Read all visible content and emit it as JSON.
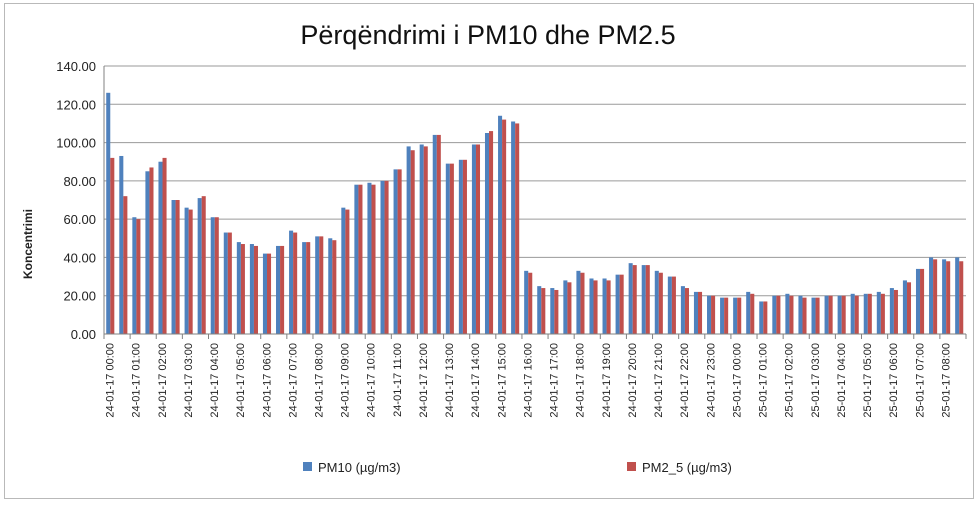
{
  "chart_data": {
    "type": "bar",
    "title": "Përqëndrimi i PM10 dhe PM2.5",
    "xlabel": "",
    "ylabel": "Koncentrimi",
    "ylim": [
      0,
      140
    ],
    "yticks": [
      "0.00",
      "20.00",
      "40.00",
      "60.00",
      "80.00",
      "100.00",
      "120.00",
      "140.00"
    ],
    "grid": true,
    "legend_position": "bottom",
    "categories": [
      "24-01-17 00:00",
      "24-01-17 00:30",
      "24-01-17 01:00",
      "24-01-17 01:30",
      "24-01-17 02:00",
      "24-01-17 02:30",
      "24-01-17 03:00",
      "24-01-17 03:30",
      "24-01-17 04:00",
      "24-01-17 04:30",
      "24-01-17 05:00",
      "24-01-17 05:30",
      "24-01-17 06:00",
      "24-01-17 06:30",
      "24-01-17 07:00",
      "24-01-17 07:30",
      "24-01-17 08:00",
      "24-01-17 08:30",
      "24-01-17 09:00",
      "24-01-17 09:30",
      "24-01-17 10:00",
      "24-01-17 10:30",
      "24-01-17 11:00",
      "24-01-17 11:30",
      "24-01-17 12:00",
      "24-01-17 12:30",
      "24-01-17 13:00",
      "24-01-17 13:30",
      "24-01-17 14:00",
      "24-01-17 14:30",
      "24-01-17 15:00",
      "24-01-17 15:30",
      "24-01-17 16:00",
      "24-01-17 16:30",
      "24-01-17 17:00",
      "24-01-17 17:30",
      "24-01-17 18:00",
      "24-01-17 18:30",
      "24-01-17 19:00",
      "24-01-17 19:30",
      "24-01-17 20:00",
      "24-01-17 20:30",
      "24-01-17 21:00",
      "24-01-17 21:30",
      "24-01-17 22:00",
      "24-01-17 22:30",
      "24-01-17 23:00",
      "24-01-17 23:30",
      "25-01-17 00:00",
      "25-01-17 00:30",
      "25-01-17 01:00",
      "25-01-17 01:30",
      "25-01-17 02:00",
      "25-01-17 02:30",
      "25-01-17 03:00",
      "25-01-17 03:30",
      "25-01-17 04:00",
      "25-01-17 04:30",
      "25-01-17 05:00",
      "25-01-17 05:30",
      "25-01-17 06:00",
      "25-01-17 06:30",
      "25-01-17 07:00",
      "25-01-17 07:30",
      "25-01-17 08:00",
      "25-01-17 08:30"
    ],
    "tick_labels": [
      "24-01-17 00:00",
      "24-01-17 01:00",
      "24-01-17 02:00",
      "24-01-17 03:00",
      "24-01-17 04:00",
      "24-01-17 05:00",
      "24-01-17 06:00",
      "24-01-17 07:00",
      "24-01-17 08:00",
      "24-01-17 09:00",
      "24-01-17 10:00",
      "24-01-17 11:00",
      "24-01-17 12:00",
      "24-01-17 13:00",
      "24-01-17 14:00",
      "24-01-17 15:00",
      "24-01-17 16:00",
      "24-01-17 17:00",
      "24-01-17 18:00",
      "24-01-17 19:00",
      "24-01-17 20:00",
      "24-01-17 21:00",
      "24-01-17 22:00",
      "24-01-17 23:00",
      "25-01-17 00:00",
      "25-01-17 01:00",
      "25-01-17 02:00",
      "25-01-17 03:00",
      "25-01-17 04:00",
      "25-01-17 05:00",
      "25-01-17 06:00",
      "25-01-17 07:00",
      "25-01-17 08:00"
    ],
    "series": [
      {
        "name": "PM10 (µg/m3)",
        "color": "#4f81bd",
        "values": [
          126,
          93,
          61,
          85,
          90,
          70,
          66,
          71,
          61,
          53,
          48,
          47,
          42,
          46,
          54,
          48,
          51,
          50,
          66,
          78,
          79,
          80,
          86,
          98,
          99,
          104,
          89,
          91,
          99,
          105,
          114,
          111,
          33,
          25,
          24,
          28,
          33,
          29,
          29,
          31,
          37,
          36,
          33,
          30,
          25,
          22,
          20,
          19,
          19,
          22,
          17,
          20,
          21,
          20,
          19,
          20,
          20,
          21,
          21,
          22,
          24,
          28,
          34,
          40,
          39,
          40
        ]
      },
      {
        "name": "PM2_5 (µg/m3)",
        "color": "#c0504d",
        "values": [
          92,
          72,
          60,
          87,
          92,
          70,
          65,
          72,
          61,
          53,
          47,
          46,
          42,
          46,
          53,
          48,
          51,
          49,
          65,
          78,
          78,
          80,
          86,
          96,
          98,
          104,
          89,
          91,
          99,
          106,
          112,
          110,
          32,
          24,
          23,
          27,
          32,
          28,
          28,
          31,
          36,
          36,
          32,
          30,
          24,
          22,
          20,
          19,
          19,
          21,
          17,
          20,
          20,
          19,
          19,
          20,
          20,
          20,
          21,
          21,
          23,
          27,
          34,
          39,
          38,
          38
        ]
      }
    ]
  }
}
